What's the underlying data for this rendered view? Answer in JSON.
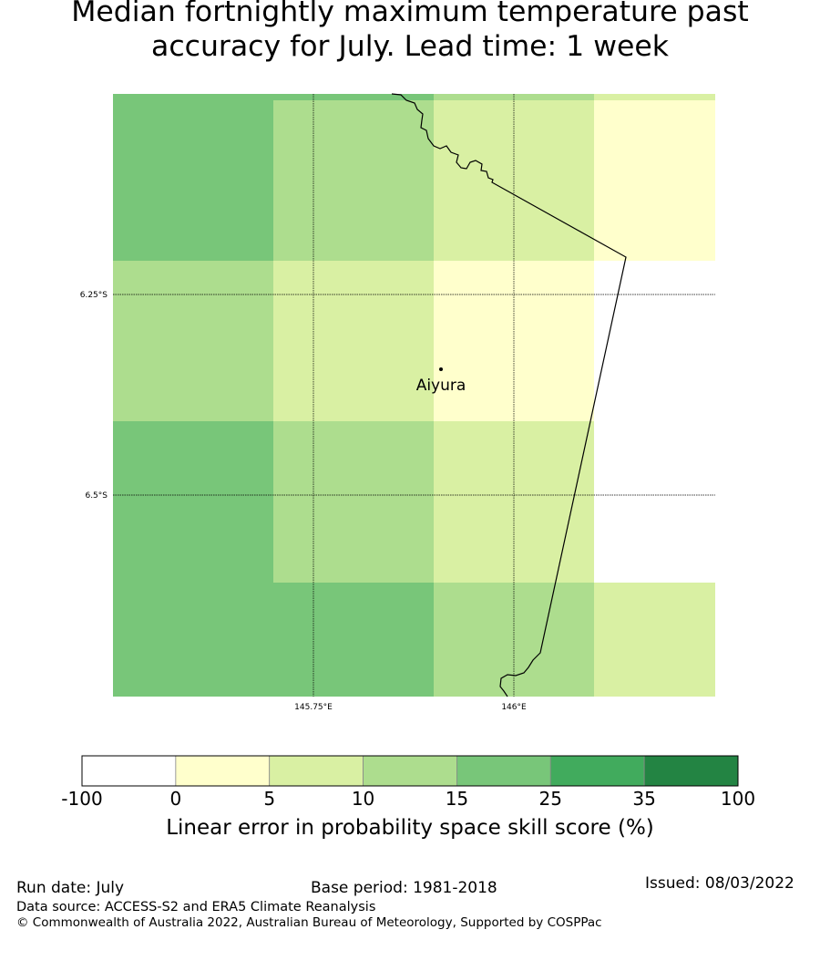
{
  "title": {
    "line1": "Median fortnightly maximum temperature past",
    "line2": "accuracy for July. Lead time: 1 week"
  },
  "map": {
    "place": "Aiyura",
    "lat_labels": [
      "6.25°S",
      "6.5°S"
    ],
    "lon_labels": [
      "145.75°E",
      "146°E"
    ],
    "grid_categories": [
      [
        "15-25",
        "10-15",
        "5-10",
        "0-5"
      ],
      [
        "10-15",
        "5-10",
        "0-5",
        "-100-0"
      ],
      [
        "15-25",
        "10-15",
        "5-10",
        "-100-0"
      ],
      [
        "15-25",
        "15-25",
        "10-15",
        "5-10"
      ]
    ]
  },
  "colorbar": {
    "ticks": [
      "-100",
      "0",
      "5",
      "10",
      "15",
      "25",
      "35",
      "100"
    ],
    "colors": [
      "#ffffff",
      "#ffffcc",
      "#d9f0a3",
      "#addd8e",
      "#78c679",
      "#41ab5d",
      "#238443"
    ],
    "label": "Linear error in probability space skill score (%)"
  },
  "footer": {
    "run_date": "Run date: July",
    "base_period": "Base period: 1981-2018",
    "issued": "Issued: 08/03/2022",
    "data_source": "Data source: ACCESS-S2 and ERA5 Climate Reanalysis",
    "copyright": "© Commonwealth of Australia 2022, Australian Bureau of Meteorology, Supported by COSPPac"
  }
}
